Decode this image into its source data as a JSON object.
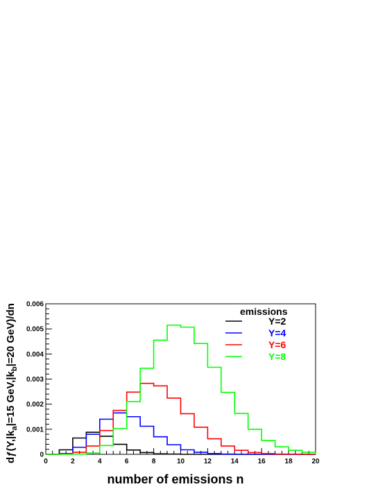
{
  "chart_data": {
    "type": "line",
    "xlabel": "number of emissions n",
    "ylabel": "dƒ(Y,|k",
    "ylabel_parts": {
      "p1": "dƒ(Y,|k",
      "sub_a": "a",
      "p2": "|=15 GeV,|k",
      "sub_b": "b",
      "p3": "|=20 GeV)/dn"
    },
    "xlim": [
      0,
      20
    ],
    "ylim": [
      0,
      0.006
    ],
    "x_ticks": [
      "0",
      "2",
      "4",
      "6",
      "8",
      "10",
      "12",
      "14",
      "16",
      "18",
      "20"
    ],
    "y_ticks": [
      "0",
      "0.001",
      "0.002",
      "0.003",
      "0.004",
      "0.005",
      "0.006"
    ],
    "bin_edges": [
      0,
      1,
      2,
      3,
      4,
      5,
      6,
      7,
      8,
      9,
      10,
      11,
      12,
      13,
      14,
      15,
      16,
      17,
      18,
      19,
      20
    ],
    "legend_title": "emissions",
    "grid": false,
    "legend_position": "top-right",
    "series": [
      {
        "name": "Y=2",
        "color": "#000000",
        "values": [
          0,
          0.00018,
          0.00065,
          0.00088,
          0.00072,
          0.0004,
          0.00017,
          7e-05,
          2e-05,
          1e-05,
          0,
          0,
          0,
          0,
          0,
          0,
          0,
          0,
          0,
          0
        ]
      },
      {
        "name": "Y=4",
        "color": "#0000ff",
        "values": [
          0,
          3e-05,
          0.00028,
          0.0008,
          0.0014,
          0.00165,
          0.0015,
          0.00112,
          0.0007,
          0.00038,
          0.00018,
          8e-05,
          3e-05,
          1e-05,
          0,
          0,
          0,
          0,
          0,
          0
        ]
      },
      {
        "name": "Y=6",
        "color": "#ff0000",
        "values": [
          0,
          1e-05,
          8e-05,
          0.00033,
          0.00095,
          0.00175,
          0.00248,
          0.00283,
          0.00273,
          0.00224,
          0.00162,
          0.00108,
          0.00062,
          0.00033,
          0.00016,
          7e-05,
          3e-05,
          1e-05,
          0,
          0
        ]
      },
      {
        "name": "Y=8",
        "color": "#00ff00",
        "values": [
          0,
          0,
          1e-05,
          5e-05,
          0.00035,
          0.00103,
          0.0021,
          0.00343,
          0.00455,
          0.00515,
          0.00507,
          0.00442,
          0.00347,
          0.00247,
          0.00163,
          0.001,
          0.00055,
          0.0003,
          0.00016,
          8e-05
        ]
      }
    ]
  }
}
